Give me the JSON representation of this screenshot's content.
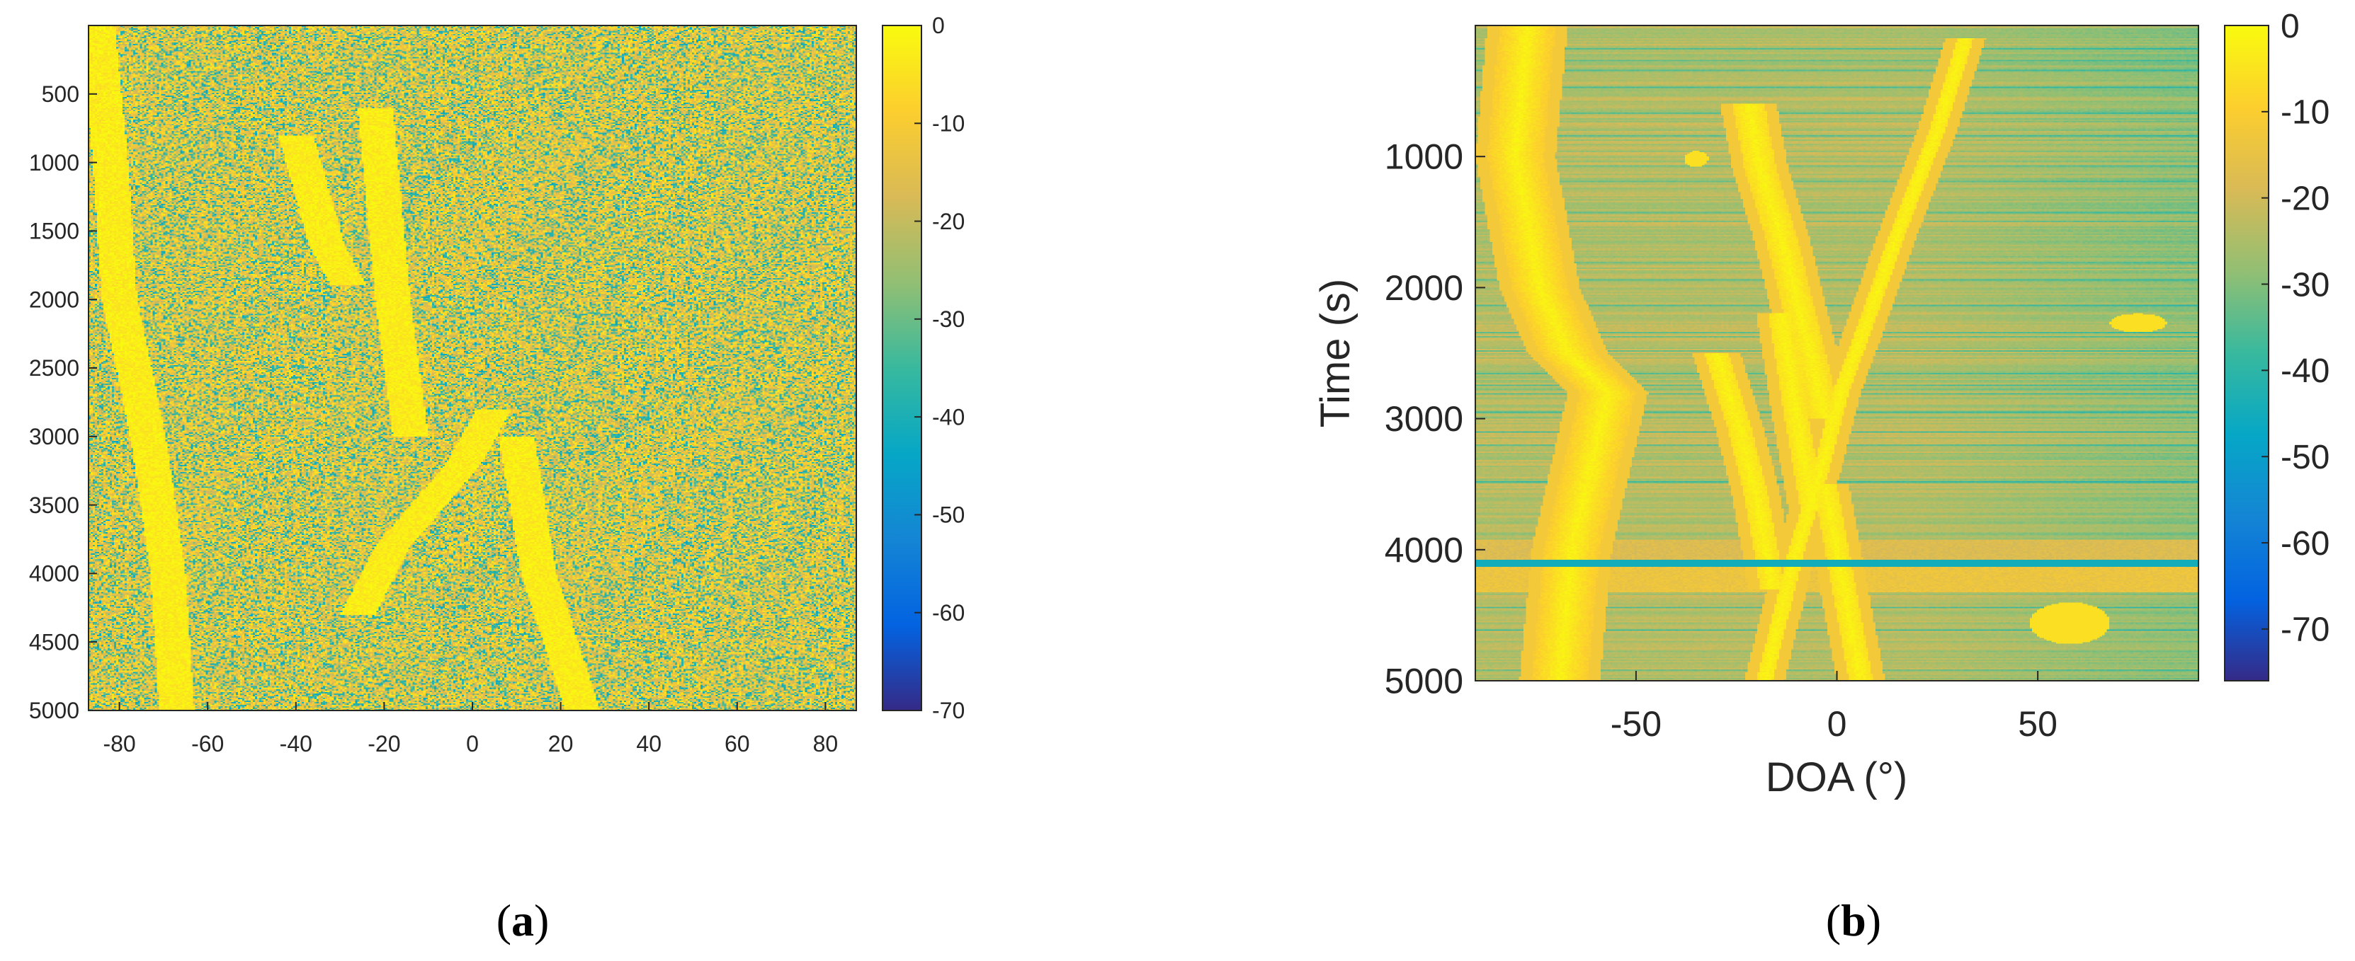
{
  "colormap": {
    "name": "parula",
    "stops": [
      "#352a87",
      "#0363e1",
      "#1485d4",
      "#06a7c6",
      "#38b99e",
      "#92bf73",
      "#d9ba56",
      "#fcce2e",
      "#f9fb0e"
    ]
  },
  "chart_data": [
    {
      "type": "heatmap",
      "panel_label": "a",
      "title": "",
      "xlabel": "",
      "ylabel": "",
      "xlim": [
        -87,
        87
      ],
      "ylim": [
        5000,
        0
      ],
      "x_ticks": [
        -80,
        -60,
        -40,
        -20,
        0,
        20,
        40,
        60,
        80
      ],
      "y_ticks": [
        500,
        1000,
        1500,
        2000,
        2500,
        3000,
        3500,
        4000,
        4500,
        5000
      ],
      "colorbar": {
        "range": [
          -70,
          0
        ],
        "ticks": [
          0,
          -10,
          -20,
          -30,
          -40,
          -50,
          -60,
          -70
        ]
      },
      "tracks": [
        {
          "points": [
            [
              -85,
              0
            ],
            [
              -82,
              1000
            ],
            [
              -80,
              2000
            ],
            [
              -76,
              2600
            ],
            [
              -73,
              3100
            ],
            [
              -69,
              4000
            ],
            [
              -67,
              5000
            ]
          ]
        },
        {
          "points": [
            [
              -40,
              800
            ],
            [
              -33,
              1600
            ],
            [
              -28,
              1900
            ]
          ]
        },
        {
          "points": [
            [
              5,
              2800
            ],
            [
              -2,
              3200
            ],
            [
              -18,
              3800
            ],
            [
              -26,
              4300
            ]
          ]
        },
        {
          "points": [
            [
              -22,
              600
            ],
            [
              -18,
              2000
            ],
            [
              -14,
              3000
            ]
          ]
        },
        {
          "points": [
            [
              10,
              3000
            ],
            [
              15,
              4000
            ],
            [
              25,
              5000
            ]
          ]
        }
      ]
    },
    {
      "type": "heatmap",
      "panel_label": "b",
      "title": "",
      "xlabel": "DOA (°)",
      "ylabel": "Time (s)",
      "xlim": [
        -90,
        90
      ],
      "ylim": [
        5000,
        0
      ],
      "x_ticks": [
        -50,
        0,
        50
      ],
      "y_ticks": [
        1000,
        2000,
        3000,
        4000,
        5000
      ],
      "colorbar": {
        "range": [
          -76,
          0
        ],
        "ticks": [
          0,
          -10,
          -20,
          -30,
          -40,
          -50,
          -60,
          -70
        ]
      },
      "tracks": [
        {
          "width": 7,
          "points": [
            [
              -77,
              0
            ],
            [
              -80,
              1000
            ],
            [
              -74,
              2000
            ],
            [
              -67,
              2500
            ],
            [
              -57,
              2800
            ],
            [
              -60,
              3200
            ],
            [
              -66,
              4000
            ],
            [
              -69,
              5000
            ]
          ]
        },
        {
          "width": 4,
          "points": [
            [
              -22,
              600
            ],
            [
              -19,
              1100
            ],
            [
              -14,
              1600
            ],
            [
              -10,
              2100
            ],
            [
              -6,
              2600
            ],
            [
              -3,
              3000
            ]
          ]
        },
        {
          "width": 2,
          "points": [
            [
              32,
              100
            ],
            [
              25,
              800
            ],
            [
              15,
              1600
            ],
            [
              7,
              2300
            ],
            [
              1,
              2800
            ],
            [
              -4,
              3400
            ],
            [
              -10,
              4000
            ],
            [
              -14,
              4500
            ],
            [
              -18,
              5000
            ]
          ]
        },
        {
          "width": 3,
          "points": [
            [
              -3,
              3500
            ],
            [
              0,
              4000
            ],
            [
              3,
              4500
            ],
            [
              6,
              5000
            ]
          ]
        },
        {
          "width": 3,
          "points": [
            [
              -30,
              2500
            ],
            [
              -24,
              3100
            ],
            [
              -20,
              3600
            ],
            [
              -16,
              4300
            ]
          ]
        },
        {
          "width": 3,
          "points": [
            [
              -14,
              2200
            ],
            [
              -10,
              3000
            ],
            [
              -6,
              3700
            ]
          ]
        }
      ],
      "blobs": [
        {
          "x": 75,
          "y": 2270,
          "rx": 7,
          "ry": 70
        },
        {
          "x": 58,
          "y": 4560,
          "rx": 10,
          "ry": 160
        },
        {
          "x": -35,
          "y": 1020,
          "rx": 3,
          "ry": 60
        }
      ],
      "bands": [
        {
          "y0": 3920,
          "y1": 4080,
          "level": -18
        },
        {
          "y0": 4130,
          "y1": 4330,
          "level": -14
        },
        {
          "y0": 4080,
          "y1": 4130,
          "level": -45
        }
      ]
    }
  ]
}
